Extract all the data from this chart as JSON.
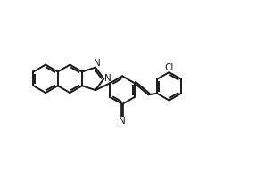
{
  "background_color": "#ffffff",
  "line_color": "#1a1a1a",
  "line_width": 1.4,
  "font_size": 7.5,
  "xlim": [
    0,
    10
  ],
  "ylim": [
    0,
    7
  ]
}
